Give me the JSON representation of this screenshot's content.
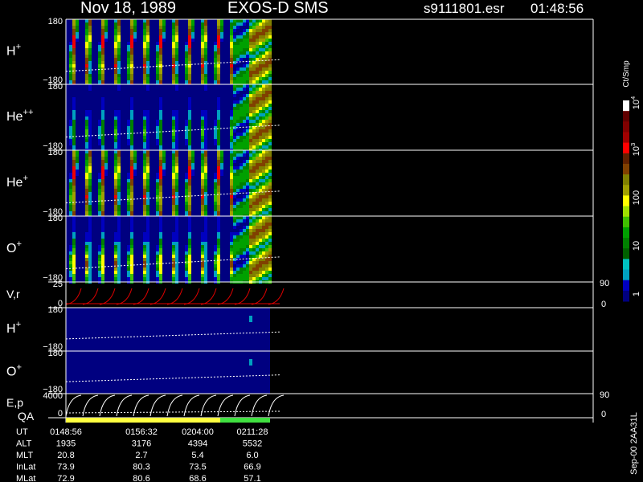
{
  "header": {
    "date": "Nov 18, 1989",
    "instrument": "EXOS-D SMS",
    "file": "s9111801.esr",
    "time": "01:48:56"
  },
  "panels": [
    {
      "label": {
        "base": "H",
        "sup": "+"
      },
      "ticks": [
        "180",
        "−180"
      ]
    },
    {
      "label": {
        "base": "He",
        "sup": "++"
      },
      "ticks": [
        "180",
        "−180"
      ]
    },
    {
      "label": {
        "base": "He",
        "sup": "+"
      },
      "ticks": [
        "180",
        "−180"
      ]
    },
    {
      "label": {
        "base": "O",
        "sup": "+"
      },
      "ticks": [
        "180",
        "−180"
      ]
    },
    {
      "label": {
        "base": "V,r",
        "sup": ""
      },
      "ticks": [
        "25",
        "0"
      ],
      "right_ticks": [
        "90",
        "0"
      ]
    },
    {
      "label": {
        "base": "H",
        "sup": "+"
      },
      "ticks": [
        "180",
        "−180"
      ]
    },
    {
      "label": {
        "base": "O",
        "sup": "+"
      },
      "ticks": [
        "180",
        "−180"
      ]
    },
    {
      "label": {
        "base": "E,p",
        "sup": ""
      },
      "ticks": [
        "4000",
        "0"
      ],
      "right_ticks": [
        "90",
        "0"
      ]
    }
  ],
  "qa_label": "QA",
  "colorbar": {
    "unit": "Ct/Smp",
    "labels": [
      {
        "base": "10",
        "sup": "4"
      },
      {
        "base": "10",
        "sup": "3"
      },
      {
        "base": "100",
        "sup": ""
      },
      {
        "base": "10",
        "sup": ""
      },
      {
        "base": "1",
        "sup": ""
      }
    ]
  },
  "ephemeris": {
    "rows": [
      {
        "name": "UT",
        "values": [
          "0148:56",
          "0156:32",
          "0204:00",
          "0211:28"
        ]
      },
      {
        "name": "ALT",
        "values": [
          "1935",
          "3176",
          "4394",
          "5532"
        ]
      },
      {
        "name": "MLT",
        "values": [
          "20.8",
          "2.7",
          "5.4",
          "6.0"
        ]
      },
      {
        "name": "InLat",
        "values": [
          "73.9",
          "80.3",
          "73.5",
          "66.9"
        ]
      },
      {
        "name": "MLat",
        "values": [
          "72.9",
          "80.6",
          "68.6",
          "57.1"
        ]
      }
    ]
  },
  "footer": "Sep-00 2AA31L"
}
